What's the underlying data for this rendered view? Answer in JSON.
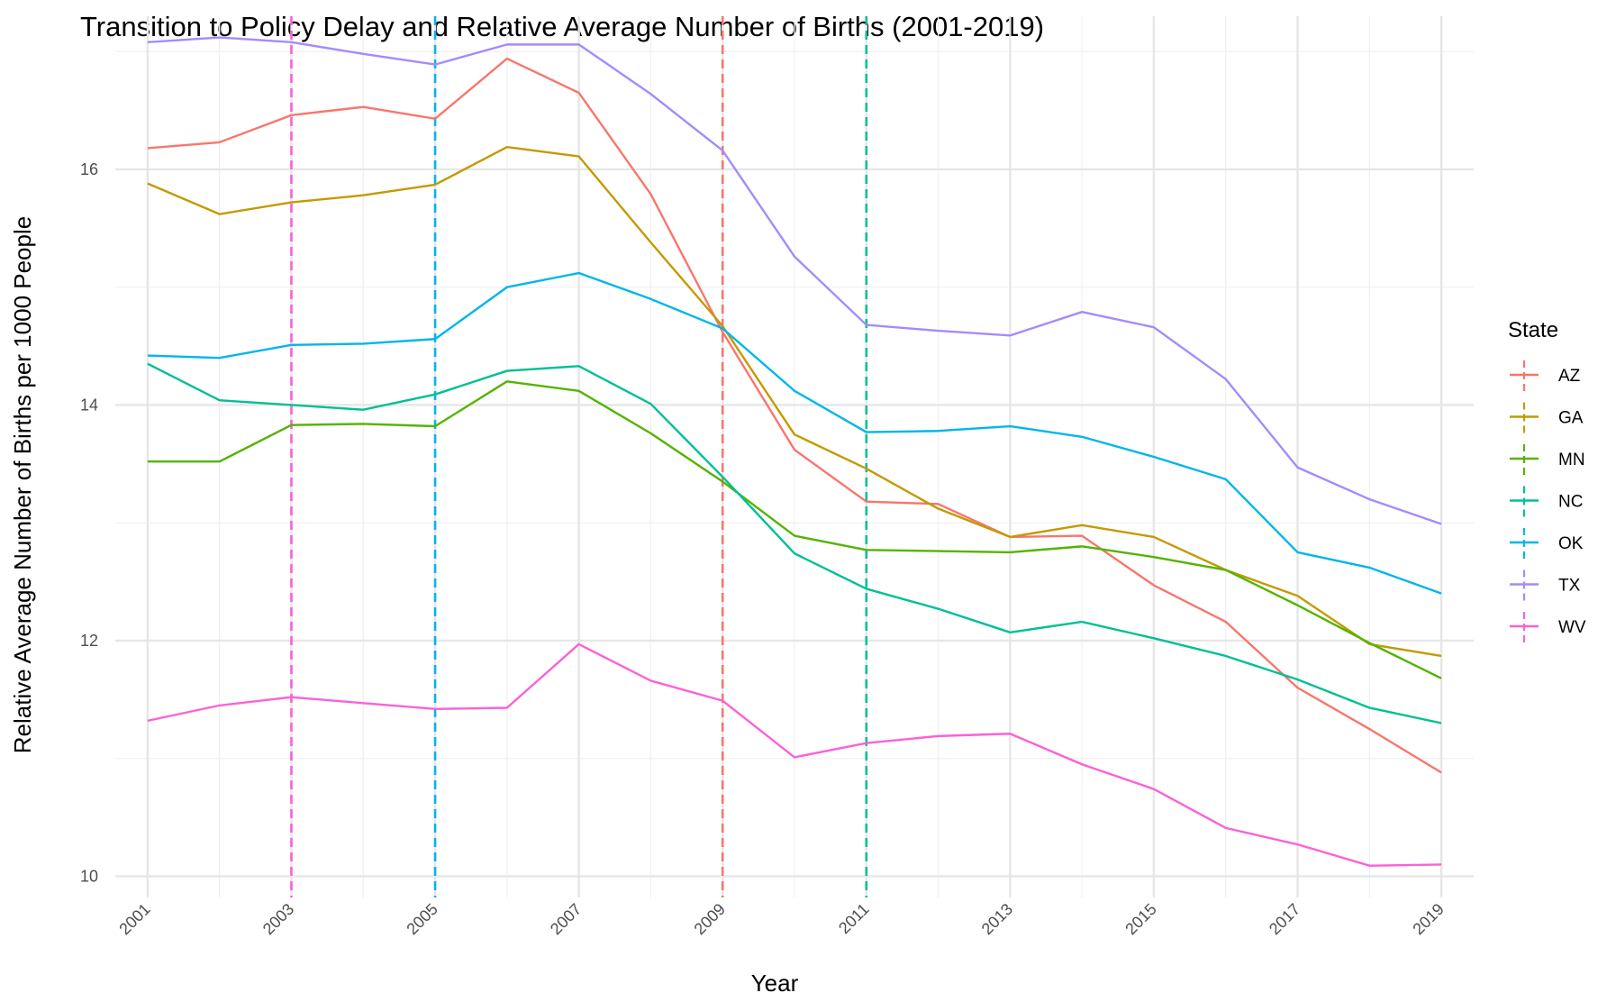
{
  "chart_data": {
    "type": "line",
    "title": "Transition to Policy Delay and Relative Average Number of Births (2001-2019)",
    "xlabel": "Year",
    "ylabel": "Relative Average Number of Births per 1000 People",
    "x": [
      2001,
      2002,
      2003,
      2004,
      2005,
      2006,
      2007,
      2008,
      2009,
      2010,
      2011,
      2012,
      2013,
      2014,
      2015,
      2016,
      2017,
      2018,
      2019
    ],
    "x_tick_labels": [
      "2001",
      "2003",
      "2005",
      "2007",
      "2009",
      "2011",
      "2013",
      "2015",
      "2017",
      "2019"
    ],
    "y_tick_labels": [
      "10",
      "12",
      "14",
      "16"
    ],
    "xlim": [
      2000.55,
      2019.45
    ],
    "ylim": [
      9.82,
      17.3
    ],
    "grid": true,
    "legend_title": "State",
    "legend_position": "right",
    "series": [
      {
        "name": "AZ",
        "color": "#F8766D",
        "values": [
          16.18,
          16.23,
          16.46,
          16.53,
          16.43,
          16.94,
          16.65,
          15.79,
          14.62,
          13.62,
          13.18,
          13.16,
          12.88,
          12.89,
          12.47,
          12.16,
          11.6,
          11.25,
          10.88
        ]
      },
      {
        "name": "GA",
        "color": "#C49A00",
        "values": [
          15.88,
          15.62,
          15.72,
          15.78,
          15.87,
          16.19,
          16.11,
          15.38,
          14.67,
          13.75,
          13.46,
          13.12,
          12.88,
          12.98,
          12.88,
          12.6,
          12.38,
          11.97,
          11.87
        ]
      },
      {
        "name": "MN",
        "color": "#53B400",
        "values": [
          13.52,
          13.52,
          13.83,
          13.84,
          13.82,
          14.2,
          14.12,
          13.76,
          13.35,
          12.89,
          12.77,
          12.76,
          12.75,
          12.8,
          12.71,
          12.6,
          12.3,
          11.98,
          11.68
        ]
      },
      {
        "name": "NC",
        "color": "#00C094",
        "values": [
          14.35,
          14.04,
          14.0,
          13.96,
          14.09,
          14.29,
          14.33,
          14.01,
          13.39,
          12.74,
          12.44,
          12.27,
          12.07,
          12.16,
          12.02,
          11.87,
          11.67,
          11.43,
          11.3
        ]
      },
      {
        "name": "OK",
        "color": "#00B6EB",
        "values": [
          14.42,
          14.4,
          14.51,
          14.52,
          14.56,
          15.0,
          15.12,
          14.9,
          14.65,
          14.12,
          13.77,
          13.78,
          13.82,
          13.73,
          13.56,
          13.37,
          12.75,
          12.62,
          12.4
        ]
      },
      {
        "name": "TX",
        "color": "#A58AFF",
        "values": [
          17.08,
          17.12,
          17.08,
          16.98,
          16.89,
          17.06,
          17.06,
          16.64,
          16.16,
          15.26,
          14.68,
          14.63,
          14.59,
          14.79,
          14.66,
          14.22,
          13.47,
          13.2,
          12.99
        ]
      },
      {
        "name": "WV",
        "color": "#FB61D7",
        "values": [
          11.32,
          11.45,
          11.52,
          11.47,
          11.42,
          11.43,
          11.97,
          11.66,
          11.49,
          11.01,
          11.13,
          11.19,
          11.21,
          10.95,
          10.74,
          10.41,
          10.27,
          10.09,
          10.1
        ]
      }
    ],
    "policy_lines": [
      {
        "state": "WV",
        "year": 2003,
        "color": "#FB61D7"
      },
      {
        "state": "OK",
        "year": 2005,
        "color": "#00B6EB"
      },
      {
        "state": "AZ",
        "year": 2009,
        "color": "#F8766D"
      },
      {
        "state": "NC",
        "year": 2011,
        "color": "#00C094"
      }
    ]
  }
}
